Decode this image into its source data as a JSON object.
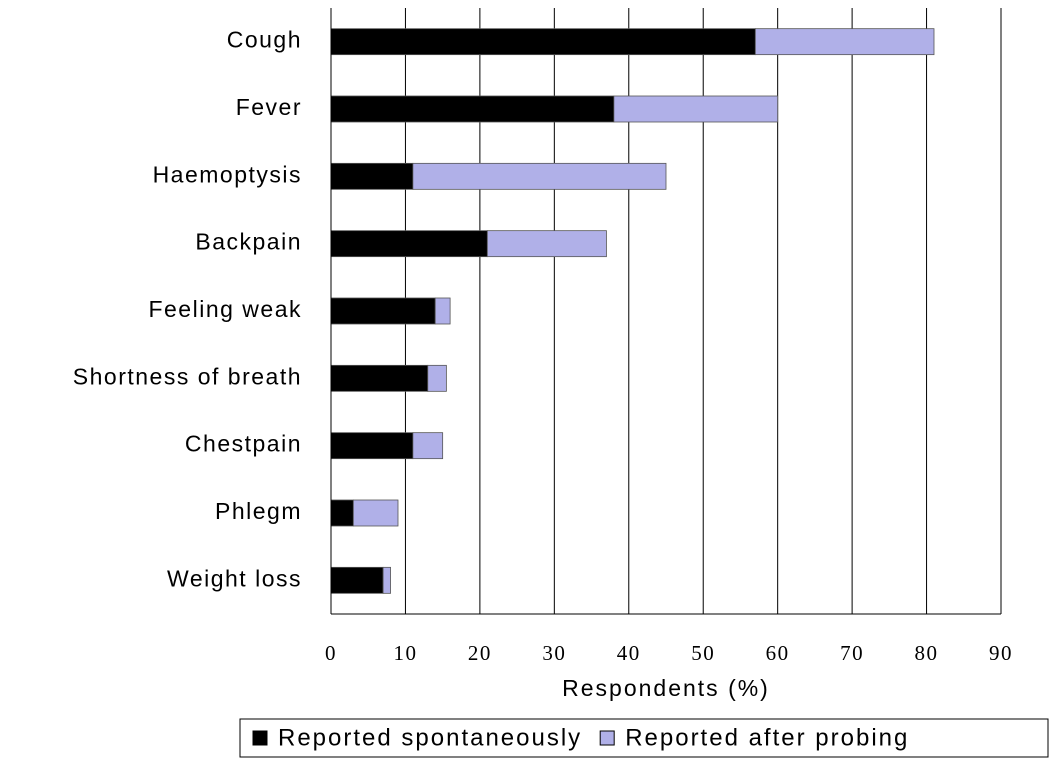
{
  "chart_data": {
    "type": "stacked_barh",
    "categories": [
      "Cough",
      "Fever",
      "Haemoptysis",
      "Backpain",
      "Feeling weak",
      "Shortness of breath",
      "Chestpain",
      "Phlegm",
      "Weight loss"
    ],
    "series": [
      {
        "name": "Reported spontaneously",
        "color": "#000000",
        "values": [
          57,
          38,
          11,
          21,
          14,
          13,
          11,
          3,
          7
        ]
      },
      {
        "name": "Reported after probing",
        "color": "#b0b0e8",
        "values": [
          24,
          22,
          34,
          16,
          2,
          2.5,
          4,
          6,
          1
        ]
      }
    ],
    "xlabel": "Respondents (%)",
    "xlim": [
      0,
      90
    ],
    "xticks": [
      0,
      10,
      20,
      30,
      40,
      50,
      60,
      70,
      80,
      90
    ],
    "grid": true
  }
}
